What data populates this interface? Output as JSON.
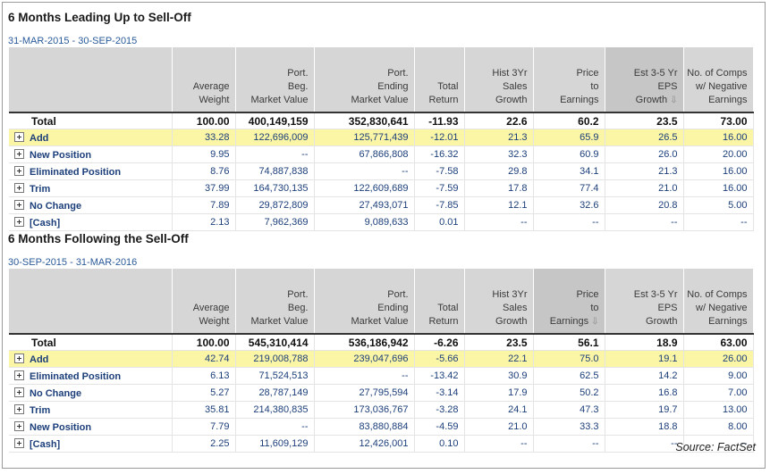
{
  "columns": [
    {
      "key": "name",
      "lines": [
        ""
      ]
    },
    {
      "key": "avg_weight",
      "lines": [
        "Average",
        "Weight"
      ]
    },
    {
      "key": "port_beg",
      "lines": [
        "Port.",
        "Beg.",
        "Market Value"
      ]
    },
    {
      "key": "port_end",
      "lines": [
        "Port.",
        "Ending",
        "Market Value"
      ]
    },
    {
      "key": "total_return",
      "lines": [
        "Total",
        "Return"
      ]
    },
    {
      "key": "sales_growth",
      "lines": [
        "Hist 3Yr",
        "Sales",
        "Growth"
      ]
    },
    {
      "key": "pe",
      "lines": [
        "Price",
        "to",
        "Earnings"
      ]
    },
    {
      "key": "eps_growth",
      "lines": [
        "Est 3-5 Yr",
        "EPS",
        "Growth"
      ]
    },
    {
      "key": "neg_earn",
      "lines": [
        "No. of Comps",
        "w/ Negative",
        "Earnings"
      ]
    }
  ],
  "sections": [
    {
      "title": "6 Months Leading Up to Sell-Off",
      "date_range": "31-MAR-2015 - 30-SEP-2015",
      "sorted_column": 7,
      "total": [
        "Total",
        "100.00",
        "400,149,159",
        "352,830,641",
        "-11.93",
        "22.6",
        "60.2",
        "23.5",
        "73.00"
      ],
      "rows": [
        [
          "Add",
          "33.28",
          "122,696,009",
          "125,771,439",
          "-12.01",
          "21.3",
          "65.9",
          "26.5",
          "16.00"
        ],
        [
          "New Position",
          "9.95",
          "--",
          "67,866,808",
          "-16.32",
          "32.3",
          "60.9",
          "26.0",
          "20.00"
        ],
        [
          "Eliminated Position",
          "8.76",
          "74,887,838",
          "--",
          "-7.58",
          "29.8",
          "34.1",
          "21.3",
          "16.00"
        ],
        [
          "Trim",
          "37.99",
          "164,730,135",
          "122,609,689",
          "-7.59",
          "17.8",
          "77.4",
          "21.0",
          "16.00"
        ],
        [
          "No Change",
          "7.89",
          "29,872,809",
          "27,493,071",
          "-7.85",
          "12.1",
          "32.6",
          "20.8",
          "5.00"
        ],
        [
          "[Cash]",
          "2.13",
          "7,962,369",
          "9,089,633",
          "0.01",
          "--",
          "--",
          "--",
          "--"
        ]
      ]
    },
    {
      "title": "6 Months Following the Sell-Off",
      "date_range": "30-SEP-2015 - 31-MAR-2016",
      "sorted_column": 6,
      "total": [
        "Total",
        "100.00",
        "545,310,414",
        "536,186,942",
        "-6.26",
        "23.5",
        "56.1",
        "18.9",
        "63.00"
      ],
      "rows": [
        [
          "Add",
          "42.74",
          "219,008,788",
          "239,047,696",
          "-5.66",
          "22.1",
          "75.0",
          "19.1",
          "26.00"
        ],
        [
          "Eliminated Position",
          "6.13",
          "71,524,513",
          "--",
          "-13.42",
          "30.9",
          "62.5",
          "14.2",
          "9.00"
        ],
        [
          "No Change",
          "5.27",
          "28,787,149",
          "27,795,594",
          "-3.14",
          "17.9",
          "50.2",
          "16.8",
          "7.00"
        ],
        [
          "Trim",
          "35.81",
          "214,380,835",
          "173,036,767",
          "-3.28",
          "24.1",
          "47.3",
          "19.7",
          "13.00"
        ],
        [
          "New Position",
          "7.79",
          "--",
          "83,880,884",
          "-4.59",
          "21.0",
          "33.3",
          "18.8",
          "8.00"
        ],
        [
          "[Cash]",
          "2.25",
          "11,609,129",
          "12,426,001",
          "0.10",
          "--",
          "--",
          "--",
          "--"
        ]
      ]
    }
  ],
  "highlight_color": "#fbf5a6",
  "source": "Source: FactSet"
}
